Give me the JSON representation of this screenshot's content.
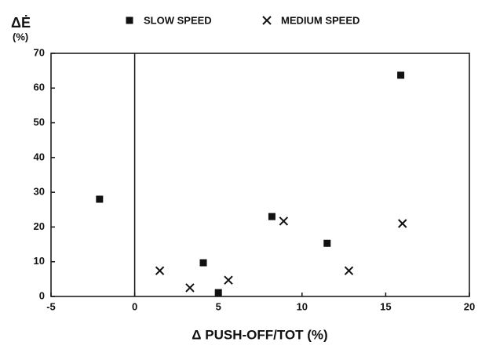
{
  "chart_data": {
    "type": "scatter",
    "y_label": "ΔĖ",
    "y_unit": "(%)",
    "x_label": "Δ PUSH-OFF/TOT (%)",
    "xlim": [
      -5,
      20
    ],
    "xticks": [
      -5,
      0,
      5,
      10,
      15,
      20
    ],
    "ylim": [
      0,
      70
    ],
    "yticks": [
      0,
      10,
      20,
      30,
      40,
      50,
      60,
      70
    ],
    "series": [
      {
        "name": "SLOW SPEED",
        "marker": "square",
        "color": "#111111",
        "x": [
          -2.1,
          4.1,
          5.0,
          8.2,
          11.5,
          15.9
        ],
        "values": [
          28,
          9.7,
          1.1,
          23,
          15.3,
          63.7
        ]
      },
      {
        "name": "MEDIUM SPEED",
        "marker": "cross",
        "color": "#111111",
        "x": [
          1.5,
          3.3,
          5.6,
          8.9,
          12.8,
          16.0
        ],
        "values": [
          7.4,
          2.5,
          4.7,
          21.7,
          7.4,
          21
        ]
      }
    ]
  }
}
